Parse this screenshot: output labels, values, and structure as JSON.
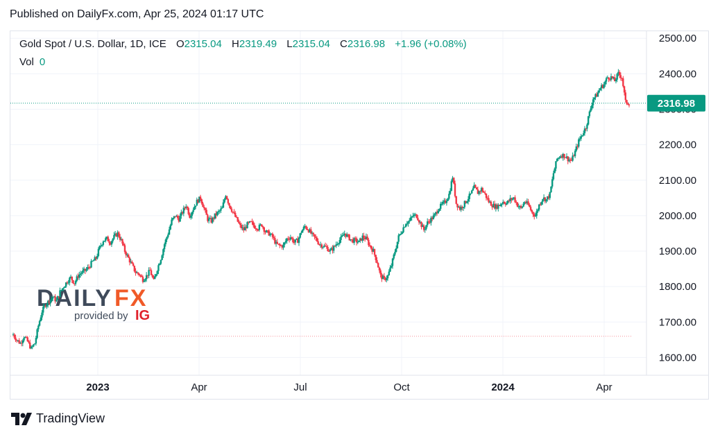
{
  "header": {
    "published": "Published on DailyFx.com, Apr 25, 2024 01:17 UTC"
  },
  "legend": {
    "symbol": "Gold Spot / U.S. Dollar, 1D, ICE",
    "open_label": "O",
    "open": "2315.04",
    "high_label": "H",
    "high": "2319.49",
    "low_label": "L",
    "low": "2315.04",
    "close_label": "C",
    "close": "2316.98",
    "change": "+1.96 (+0.08%)",
    "vol_label": "Vol",
    "vol_value": "0"
  },
  "price_badge": "2316.98",
  "watermark": {
    "brand_a": "DAILY",
    "brand_b": "FX",
    "provided_by": "provided by",
    "ig": "IG"
  },
  "footer": {
    "tradingview": "TradingView"
  },
  "colors": {
    "up": "#089981",
    "down": "#f23645",
    "badge": "#089981",
    "accent_fx": "#f05a28",
    "ig": "#e0212b"
  },
  "chart_data": {
    "type": "candlestick",
    "title": "Gold Spot / U.S. Dollar, 1D, ICE",
    "ylim": [
      1550,
      2520
    ],
    "y_ticks": [
      "1600.00",
      "1700.00",
      "1800.00",
      "1900.00",
      "2000.00",
      "2100.00",
      "2200.00",
      "2300.00",
      "2400.00",
      "2500.00"
    ],
    "x_ticks": [
      {
        "label": "2023",
        "bold": true
      },
      {
        "label": "Apr",
        "bold": false
      },
      {
        "label": "Jul",
        "bold": false
      },
      {
        "label": "Oct",
        "bold": false
      },
      {
        "label": "2024",
        "bold": true
      },
      {
        "label": "Apr",
        "bold": false
      }
    ],
    "current_price": 2316.98,
    "reference_line": 1660,
    "close_path": [
      1665,
      1650,
      1640,
      1660,
      1645,
      1625,
      1640,
      1690,
      1730,
      1750,
      1760,
      1770,
      1760,
      1785,
      1800,
      1815,
      1825,
      1810,
      1830,
      1840,
      1845,
      1855,
      1870,
      1880,
      1910,
      1930,
      1935,
      1925,
      1940,
      1950,
      1930,
      1900,
      1880,
      1860,
      1840,
      1835,
      1820,
      1830,
      1845,
      1815,
      1850,
      1880,
      1920,
      1950,
      1985,
      2000,
      1990,
      2010,
      2030,
      2000,
      2020,
      2040,
      2050,
      2020,
      1990,
      1985,
      2000,
      2010,
      2020,
      2060,
      2030,
      2010,
      1990,
      1970,
      1960,
      1975,
      1980,
      1970,
      1965,
      1975,
      1955,
      1950,
      1940,
      1920,
      1915,
      1915,
      1935,
      1940,
      1925,
      1930,
      1955,
      1970,
      1960,
      1945,
      1935,
      1920,
      1915,
      1910,
      1900,
      1910,
      1925,
      1935,
      1950,
      1940,
      1930,
      1930,
      1925,
      1940,
      1935,
      1915,
      1900,
      1870,
      1830,
      1820,
      1830,
      1860,
      1900,
      1940,
      1960,
      1980,
      1985,
      2000,
      2000,
      1980,
      1960,
      1980,
      1990,
      2000,
      2020,
      2030,
      2040,
      2060,
      2110,
      2035,
      2020,
      2030,
      2045,
      2060,
      2080,
      2065,
      2075,
      2060,
      2040,
      2030,
      2025,
      2030,
      2040,
      2035,
      2045,
      2050,
      2030,
      2020,
      2040,
      2030,
      2010,
      2000,
      2030,
      2050,
      2045,
      2060,
      2120,
      2160,
      2170,
      2170,
      2160,
      2155,
      2180,
      2210,
      2230,
      2250,
      2290,
      2330,
      2340,
      2360,
      2370,
      2390,
      2390,
      2380,
      2400,
      2390,
      2320,
      2316.98
    ]
  }
}
